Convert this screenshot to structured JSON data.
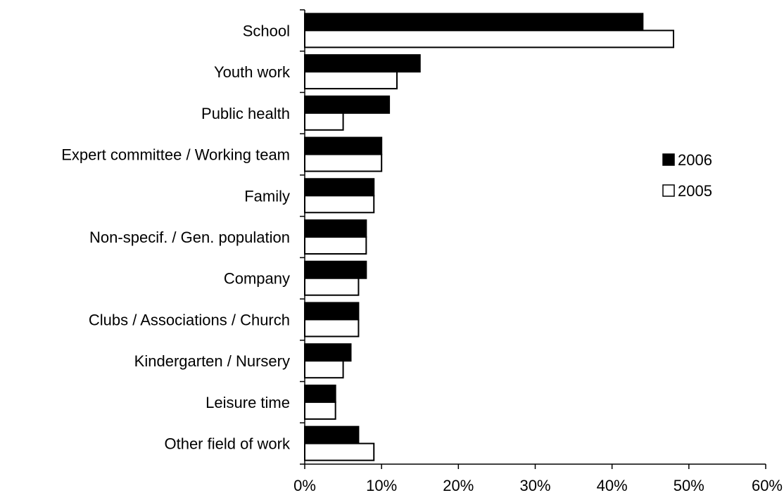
{
  "chart_data": {
    "type": "bar",
    "orientation": "horizontal",
    "categories": [
      "School",
      "Youth work",
      "Public health",
      "Expert committee / Working team",
      "Family",
      "Non-specif. / Gen. population",
      "Company",
      "Clubs / Associations / Church",
      "Kindergarten / Nursery",
      "Leisure time",
      "Other field of work"
    ],
    "series": [
      {
        "name": "2006",
        "color": "#000000",
        "values": [
          44,
          15,
          11,
          10,
          9,
          8,
          8,
          7,
          6,
          4,
          7
        ]
      },
      {
        "name": "2005",
        "color": "#ffffff",
        "values": [
          48,
          12,
          5,
          10,
          9,
          8,
          7,
          7,
          5,
          4,
          9
        ]
      }
    ],
    "xlim": [
      0,
      60
    ],
    "xticks": [
      0,
      10,
      20,
      30,
      40,
      50,
      60
    ],
    "xtick_labels": [
      "0%",
      "10%",
      "20%",
      "30%",
      "40%",
      "50%",
      "60%"
    ],
    "title": "",
    "xlabel": "",
    "ylabel": "",
    "grid": false,
    "legend": "right"
  }
}
